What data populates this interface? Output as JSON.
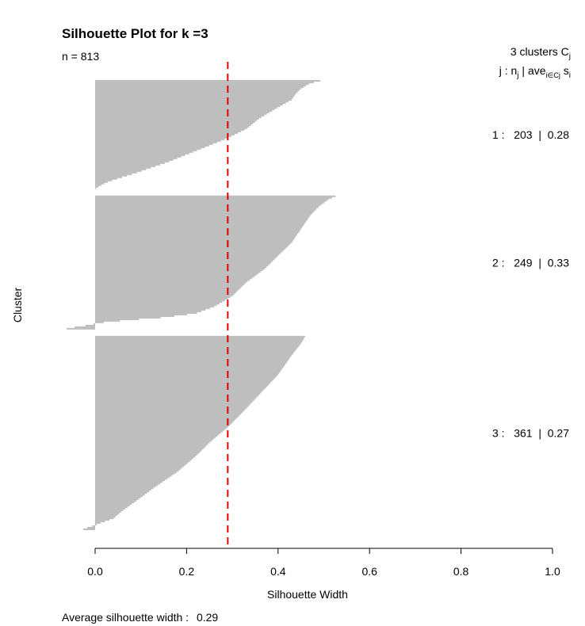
{
  "chart_data": {
    "type": "bar",
    "orientation": "horizontal",
    "title": "Silhouette Plot for k =3",
    "subtitle": "n = 813",
    "xlabel": "Silhouette Width",
    "ylabel": "Cluster",
    "xlim": [
      0,
      1
    ],
    "xticks": [
      "0.0",
      "0.2",
      "0.4",
      "0.6",
      "0.8",
      "1.0"
    ],
    "bar_color": "#bebebe",
    "reference_line": {
      "value": 0.29,
      "color": "#e00000",
      "style": "dashed"
    },
    "footer": {
      "label": "Average silhouette width :",
      "value": "0.29"
    },
    "legend_header": {
      "line1": "3  clusters  C",
      "line1_sub": "j",
      "line2_j": "j :  n",
      "line2_sub1": "j",
      "line2_mid": " | ave",
      "line2_sub2": "i∈Cj",
      "line2_end": "  s",
      "line2_sub3": "i"
    },
    "clusters": [
      {
        "id": 1,
        "n": 203,
        "avg": 0.28,
        "label": "1 :   203  |  0.28",
        "profile": [
          [
            0,
            0.5
          ],
          [
            0.03,
            0.47
          ],
          [
            0.08,
            0.45
          ],
          [
            0.12,
            0.44
          ],
          [
            0.18,
            0.43
          ],
          [
            0.25,
            0.4
          ],
          [
            0.35,
            0.36
          ],
          [
            0.45,
            0.33
          ],
          [
            0.55,
            0.28
          ],
          [
            0.65,
            0.22
          ],
          [
            0.75,
            0.16
          ],
          [
            0.85,
            0.09
          ],
          [
            0.93,
            0.03
          ],
          [
            0.97,
            0.01
          ],
          [
            1,
            0.0
          ]
        ]
      },
      {
        "id": 2,
        "n": 249,
        "avg": 0.33,
        "label": "2 :   249  |  0.33",
        "profile": [
          [
            0,
            0.53
          ],
          [
            0.03,
            0.51
          ],
          [
            0.08,
            0.49
          ],
          [
            0.15,
            0.47
          ],
          [
            0.25,
            0.45
          ],
          [
            0.35,
            0.43
          ],
          [
            0.45,
            0.4
          ],
          [
            0.55,
            0.37
          ],
          [
            0.65,
            0.33
          ],
          [
            0.75,
            0.3
          ],
          [
            0.83,
            0.26
          ],
          [
            0.88,
            0.22
          ],
          [
            0.91,
            0.15
          ],
          [
            0.93,
            0.07
          ],
          [
            0.95,
            0.01
          ],
          [
            0.97,
            -0.02
          ],
          [
            0.985,
            -0.05
          ],
          [
            1,
            -0.07
          ]
        ]
      },
      {
        "id": 3,
        "n": 361,
        "avg": 0.27,
        "label": "3 :   361  |  0.27",
        "profile": [
          [
            0,
            0.46
          ],
          [
            0.04,
            0.45
          ],
          [
            0.1,
            0.43
          ],
          [
            0.2,
            0.4
          ],
          [
            0.3,
            0.36
          ],
          [
            0.4,
            0.32
          ],
          [
            0.47,
            0.29
          ],
          [
            0.55,
            0.25
          ],
          [
            0.62,
            0.22
          ],
          [
            0.7,
            0.18
          ],
          [
            0.78,
            0.13
          ],
          [
            0.85,
            0.09
          ],
          [
            0.9,
            0.06
          ],
          [
            0.94,
            0.04
          ],
          [
            0.965,
            0.01
          ],
          [
            0.975,
            0.0
          ],
          [
            0.99,
            -0.02
          ],
          [
            1,
            -0.03
          ]
        ]
      }
    ]
  }
}
